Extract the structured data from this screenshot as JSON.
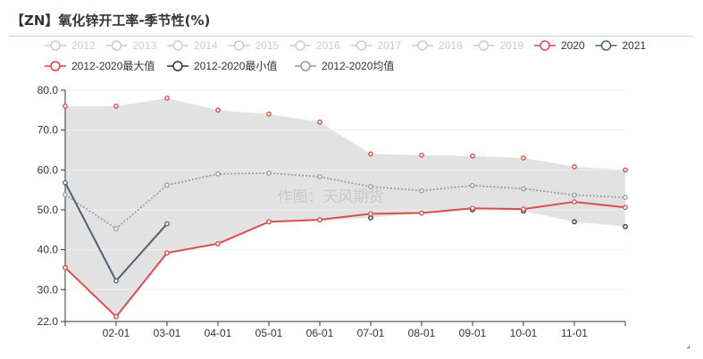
{
  "title": "【ZN】氧化锌开工率-季节性(%)",
  "watermark": "作图：天风期货",
  "colors": {
    "y2020": "#d94f4f",
    "y2021": "#4d6270",
    "max": "#e8403a",
    "min": "#333333",
    "avg": "#999999",
    "band": "#e2e2e2",
    "legend_off": "#cccccc",
    "axis": "#333333",
    "grid": "#eeeeee"
  },
  "legend": [
    {
      "label": "2012",
      "active": false,
      "color": "#cccccc"
    },
    {
      "label": "2013",
      "active": false,
      "color": "#cccccc"
    },
    {
      "label": "2014",
      "active": false,
      "color": "#cccccc"
    },
    {
      "label": "2015",
      "active": false,
      "color": "#cccccc"
    },
    {
      "label": "2016",
      "active": false,
      "color": "#cccccc"
    },
    {
      "label": "2017",
      "active": false,
      "color": "#cccccc"
    },
    {
      "label": "2018",
      "active": false,
      "color": "#cccccc"
    },
    {
      "label": "2019",
      "active": false,
      "color": "#cccccc"
    },
    {
      "label": "2020",
      "active": true,
      "color": "#d94f4f"
    },
    {
      "label": "2021",
      "active": true,
      "color": "#4d6270"
    },
    {
      "label": "2012-2020最大值",
      "active": true,
      "color": "#e8403a"
    },
    {
      "label": "2012-2020最小值",
      "active": true,
      "color": "#333333"
    },
    {
      "label": "2012-2020均值",
      "active": true,
      "color": "#999999"
    }
  ],
  "chart_data": {
    "type": "line",
    "x_tick_labels": [
      "02-01",
      "03-01",
      "04-01",
      "05-01",
      "06-01",
      "07-01",
      "08-01",
      "09-01",
      "10-01",
      "11-01"
    ],
    "y_tick_labels": [
      "22.0",
      "30.0",
      "40.0",
      "50.0",
      "60.0",
      "70.0",
      "80.0"
    ],
    "ylim": [
      22,
      80
    ],
    "y_ticks": [
      22,
      30,
      40,
      50,
      60,
      70,
      80
    ],
    "series": [
      {
        "name": "2012-2020最大值",
        "values": [
          76,
          76,
          78,
          75,
          74,
          72,
          64,
          63.7,
          63.5,
          63,
          60.8,
          60
        ]
      },
      {
        "name": "2012-2020最小值",
        "values": [
          35.5,
          23.2,
          39.2,
          41.5,
          47,
          47.5,
          48,
          49.2,
          50,
          49.7,
          47,
          45.8
        ]
      },
      {
        "name": "2012-2020均值",
        "values": [
          53.8,
          45.3,
          56.2,
          59,
          59.2,
          58.3,
          55.8,
          54.8,
          56.1,
          55.3,
          53.7,
          53.1
        ]
      },
      {
        "name": "2020",
        "values": [
          35.5,
          23.2,
          39.2,
          41.5,
          47,
          47.5,
          49,
          49.2,
          50.4,
          50.2,
          52,
          50.6
        ]
      },
      {
        "name": "2021",
        "values": [
          56.8,
          32.2,
          46.5
        ]
      }
    ]
  }
}
